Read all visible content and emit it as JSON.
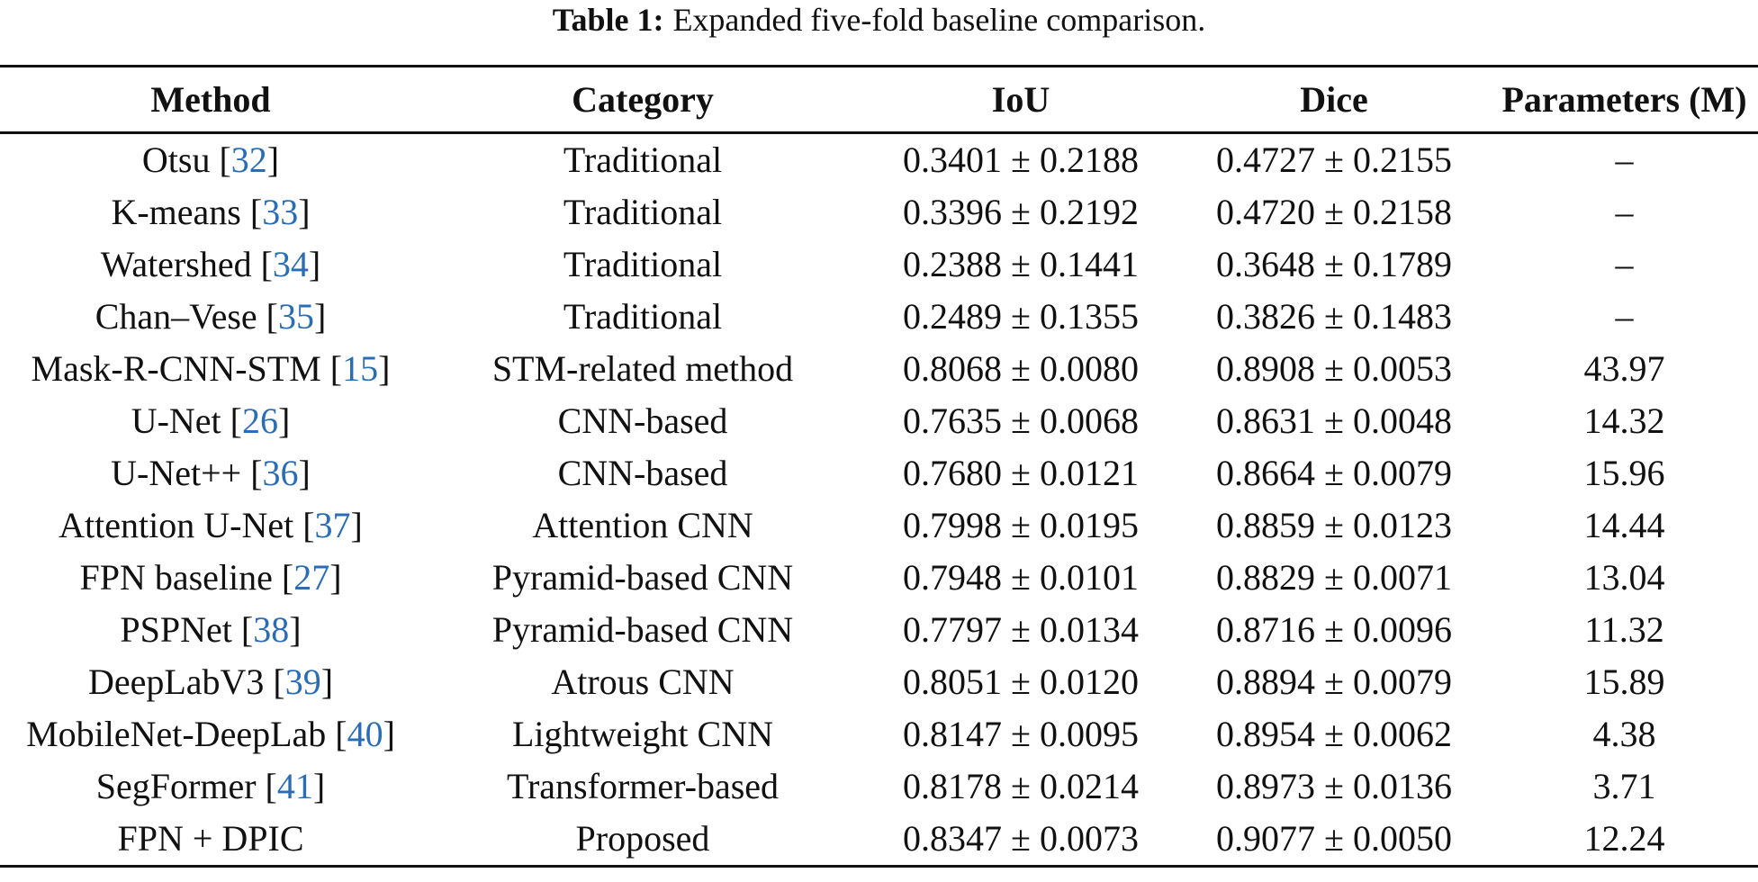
{
  "caption": {
    "label": "Table 1:",
    "text": "Expanded five-fold baseline comparison."
  },
  "table": {
    "headers": {
      "method": "Method",
      "category": "Category",
      "iou": "IoU",
      "dice": "Dice",
      "params": "Parameters (M)"
    },
    "rows": [
      {
        "method": "Otsu",
        "ref": "32",
        "category": "Traditional",
        "iou": "0.3401 ± 0.2188",
        "dice": "0.4727 ± 0.2155",
        "params": "–"
      },
      {
        "method": "K-means",
        "ref": "33",
        "category": "Traditional",
        "iou": "0.3396 ± 0.2192",
        "dice": "0.4720 ± 0.2158",
        "params": "–"
      },
      {
        "method": "Watershed",
        "ref": "34",
        "category": "Traditional",
        "iou": "0.2388 ± 0.1441",
        "dice": "0.3648 ± 0.1789",
        "params": "–"
      },
      {
        "method": "Chan–Vese",
        "ref": "35",
        "category": "Traditional",
        "iou": "0.2489 ± 0.1355",
        "dice": "0.3826 ± 0.1483",
        "params": "–"
      },
      {
        "method": "Mask-R-CNN-STM",
        "ref": "15",
        "category": "STM-related method",
        "iou": "0.8068 ± 0.0080",
        "dice": "0.8908 ± 0.0053",
        "params": "43.97"
      },
      {
        "method": "U-Net",
        "ref": "26",
        "category": "CNN-based",
        "iou": "0.7635 ± 0.0068",
        "dice": "0.8631 ± 0.0048",
        "params": "14.32"
      },
      {
        "method": "U-Net++",
        "ref": "36",
        "category": "CNN-based",
        "iou": "0.7680 ± 0.0121",
        "dice": "0.8664 ± 0.0079",
        "params": "15.96"
      },
      {
        "method": "Attention U-Net",
        "ref": "37",
        "category": "Attention CNN",
        "iou": "0.7998 ± 0.0195",
        "dice": "0.8859 ± 0.0123",
        "params": "14.44"
      },
      {
        "method": "FPN baseline",
        "ref": "27",
        "category": "Pyramid-based CNN",
        "iou": "0.7948 ± 0.0101",
        "dice": "0.8829 ± 0.0071",
        "params": "13.04"
      },
      {
        "method": "PSPNet",
        "ref": "38",
        "category": "Pyramid-based CNN",
        "iou": "0.7797 ± 0.0134",
        "dice": "0.8716 ± 0.0096",
        "params": "11.32"
      },
      {
        "method": "DeepLabV3",
        "ref": "39",
        "category": "Atrous CNN",
        "iou": "0.8051 ± 0.0120",
        "dice": "0.8894 ± 0.0079",
        "params": "15.89"
      },
      {
        "method": "MobileNet-DeepLab",
        "ref": "40",
        "category": "Lightweight CNN",
        "iou": "0.8147 ± 0.0095",
        "dice": "0.8954 ± 0.0062",
        "params": "4.38"
      },
      {
        "method": "SegFormer",
        "ref": "41",
        "category": "Transformer-based",
        "iou": "0.8178 ± 0.0214",
        "dice": "0.8973 ± 0.0136",
        "params": "3.71"
      },
      {
        "method": "FPN + DPIC",
        "ref": "",
        "category": "Proposed",
        "iou": "0.8347 ± 0.0073",
        "dice": "0.9077 ± 0.0050",
        "params": "12.24"
      }
    ]
  },
  "colors": {
    "text": "#111111",
    "citation_link": "#2a6db5",
    "background": "#ffffff"
  }
}
